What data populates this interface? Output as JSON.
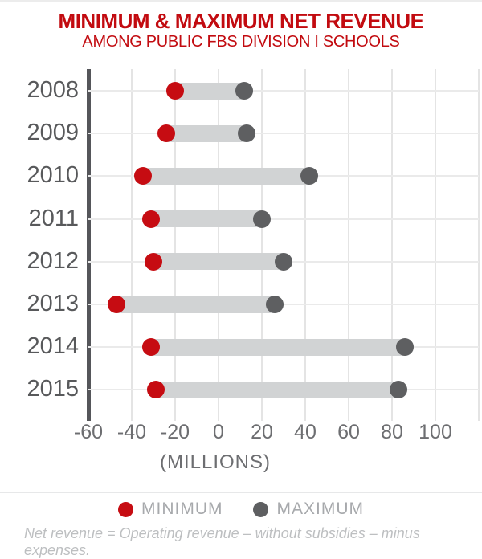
{
  "header": {
    "title": "MINIMUM & MAXIMUM NET REVENUE",
    "subtitle": "AMONG PUBLIC FBS DIVISION I SCHOOLS"
  },
  "chart_data": {
    "type": "bar",
    "subtype": "dumbbell-range",
    "orientation": "horizontal",
    "categories": [
      "2008",
      "2009",
      "2010",
      "2011",
      "2012",
      "2013",
      "2014",
      "2015"
    ],
    "series": [
      {
        "name": "MINIMUM",
        "color": "#C60C12",
        "values": [
          -20,
          -24,
          -35,
          -31,
          -30,
          -47,
          -31,
          -29
        ]
      },
      {
        "name": "MAXIMUM",
        "color": "#5E5F61",
        "values": [
          12,
          13,
          42,
          20,
          30,
          26,
          86,
          83
        ]
      }
    ],
    "title": "MINIMUM & MAXIMUM NET REVENUE",
    "subtitle": "AMONG PUBLIC FBS DIVISION I SCHOOLS",
    "xlabel": "(MILLIONS)",
    "ylabel": "",
    "x_ticks": [
      -60,
      -40,
      -20,
      0,
      20,
      40,
      60,
      80,
      100
    ],
    "xlim": [
      -60,
      120
    ],
    "grid": true,
    "legend_position": "bottom",
    "bar_color": "#D1D3D4"
  },
  "legend": {
    "items": [
      {
        "label": "MINIMUM",
        "color": "#C60C12"
      },
      {
        "label": "MAXIMUM",
        "color": "#5E5F61"
      }
    ]
  },
  "footnote": "Net revenue = Operating revenue – without subsidies – minus expenses.",
  "colors": {
    "title_red": "#C20B10",
    "axis": "#55565A",
    "gridline": "#E4E4E4",
    "bar": "#D1D3D4",
    "year_label": "#58595B",
    "tick_label": "#6D6E71",
    "legend_text": "#A7A9AC",
    "footnote_text": "#BDBFC1"
  }
}
